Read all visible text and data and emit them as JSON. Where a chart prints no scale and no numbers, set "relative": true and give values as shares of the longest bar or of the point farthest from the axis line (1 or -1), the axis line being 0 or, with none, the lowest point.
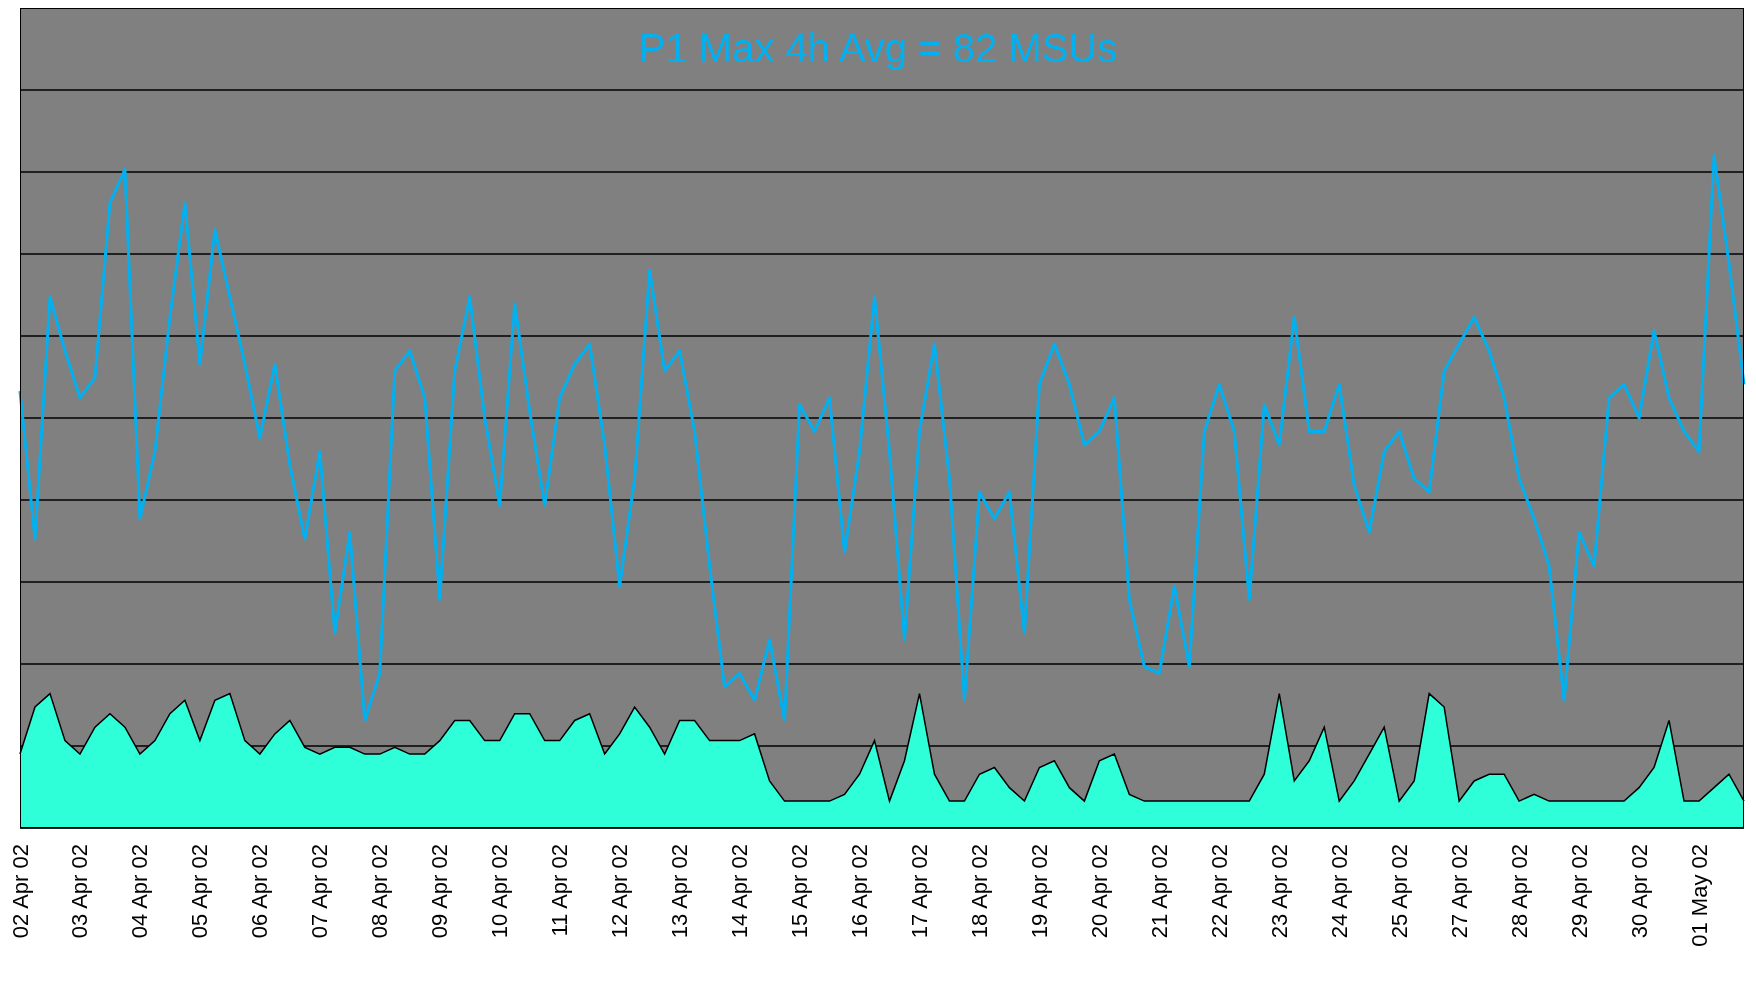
{
  "chart_data": {
    "type": "line",
    "title": "P1 Max 4h Avg = 82 MSUs",
    "relative": true,
    "grid": "y",
    "legend": false,
    "marker": "none",
    "categories": [
      "02 Apr 02",
      null,
      null,
      null,
      "03 Apr 02",
      null,
      null,
      null,
      "04 Apr 02",
      null,
      null,
      null,
      "05 Apr 02",
      null,
      null,
      null,
      "06 Apr 02",
      null,
      null,
      null,
      "07 Apr 02",
      null,
      null,
      null,
      "08 Apr 02",
      null,
      null,
      null,
      "09 Apr 02",
      null,
      null,
      null,
      "10 Apr 02",
      null,
      null,
      null,
      "11 Apr 02",
      null,
      null,
      null,
      "12 Apr 02",
      null,
      null,
      null,
      "13 Apr 02",
      null,
      null,
      null,
      "14 Apr 02",
      null,
      null,
      null,
      "15 Apr 02",
      null,
      null,
      null,
      "16 Apr 02",
      null,
      null,
      null,
      "17 Apr 02",
      null,
      null,
      null,
      "18 Apr 02",
      null,
      null,
      null,
      "19 Apr 02",
      null,
      null,
      null,
      "20 Apr 02",
      null,
      null,
      null,
      "21 Apr 02",
      null,
      null,
      null,
      "22 Apr 02",
      null,
      null,
      null,
      "23 Apr 02",
      null,
      null,
      null,
      "24 Apr 02",
      null,
      null,
      null,
      "25 Apr 02",
      null,
      null,
      null,
      "27 Apr 02",
      null,
      null,
      null,
      "28 Apr 02",
      null,
      null,
      null,
      "29 Apr 02",
      null,
      null,
      null,
      "30 Apr 02",
      null,
      null,
      null,
      "01 May 02",
      null,
      null,
      null
    ],
    "series": [
      {
        "type": "area",
        "color": "#2effd8",
        "values": [
          0.11,
          0.18,
          0.2,
          0.13,
          0.11,
          0.15,
          0.17,
          0.15,
          0.11,
          0.13,
          0.17,
          0.19,
          0.13,
          0.19,
          0.2,
          0.13,
          0.11,
          0.14,
          0.16,
          0.12,
          0.11,
          0.12,
          0.12,
          0.11,
          0.11,
          0.12,
          0.11,
          0.11,
          0.13,
          0.16,
          0.16,
          0.13,
          0.13,
          0.17,
          0.17,
          0.13,
          0.13,
          0.16,
          0.17,
          0.11,
          0.14,
          0.18,
          0.15,
          0.11,
          0.16,
          0.16,
          0.13,
          0.13,
          0.13,
          0.14,
          0.07,
          0.04,
          0.04,
          0.04,
          0.04,
          0.05,
          0.08,
          0.13,
          0.04,
          0.1,
          0.2,
          0.08,
          0.04,
          0.04,
          0.08,
          0.09,
          0.06,
          0.04,
          0.09,
          0.1,
          0.06,
          0.04,
          0.1,
          0.11,
          0.05,
          0.04,
          0.04,
          0.04,
          0.04,
          0.04,
          0.04,
          0.04,
          0.04,
          0.08,
          0.2,
          0.07,
          0.1,
          0.15,
          0.04,
          0.07,
          0.11,
          0.15,
          0.04,
          0.07,
          0.2,
          0.18,
          0.04,
          0.07,
          0.08,
          0.08,
          0.04,
          0.05,
          0.04,
          0.04,
          0.04,
          0.04,
          0.04,
          0.04,
          0.06,
          0.09,
          0.16,
          0.04,
          0.04,
          0.06,
          0.08,
          0.04
        ]
      },
      {
        "color": "#00b0f0",
        "values": [
          0.65,
          0.43,
          0.79,
          0.71,
          0.64,
          0.67,
          0.93,
          0.98,
          0.46,
          0.56,
          0.76,
          0.93,
          0.69,
          0.89,
          0.79,
          0.69,
          0.58,
          0.69,
          0.54,
          0.43,
          0.56,
          0.29,
          0.44,
          0.16,
          0.23,
          0.68,
          0.71,
          0.64,
          0.34,
          0.68,
          0.79,
          0.61,
          0.48,
          0.78,
          0.62,
          0.48,
          0.64,
          0.69,
          0.72,
          0.57,
          0.36,
          0.52,
          0.83,
          0.68,
          0.71,
          0.59,
          0.39,
          0.21,
          0.23,
          0.19,
          0.28,
          0.16,
          0.63,
          0.59,
          0.64,
          0.41,
          0.56,
          0.79,
          0.56,
          0.28,
          0.59,
          0.72,
          0.52,
          0.19,
          0.5,
          0.46,
          0.5,
          0.29,
          0.66,
          0.72,
          0.66,
          0.57,
          0.59,
          0.64,
          0.34,
          0.24,
          0.23,
          0.36,
          0.24,
          0.59,
          0.66,
          0.59,
          0.34,
          0.63,
          0.57,
          0.76,
          0.59,
          0.59,
          0.66,
          0.51,
          0.44,
          0.56,
          0.59,
          0.52,
          0.5,
          0.68,
          0.72,
          0.76,
          0.71,
          0.64,
          0.52,
          0.46,
          0.39,
          0.19,
          0.44,
          0.39,
          0.64,
          0.66,
          0.61,
          0.74,
          0.64,
          0.59,
          0.56,
          1,
          0.84,
          0.66
        ]
      }
    ]
  }
}
